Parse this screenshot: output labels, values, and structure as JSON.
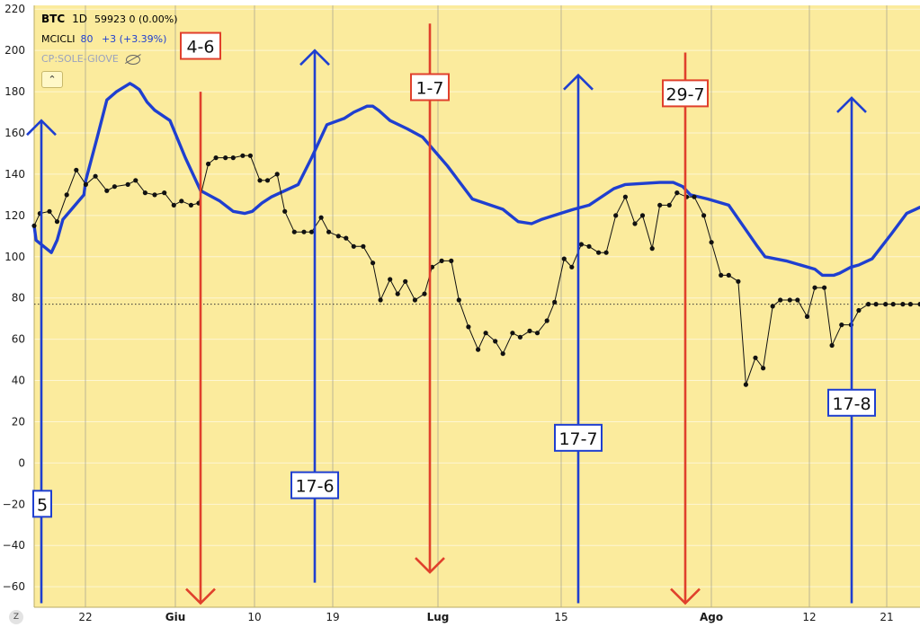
{
  "legend": {
    "symbol": "BTC",
    "timeframe": "1D",
    "price": "59923",
    "change": "0 (0.00%)",
    "indicator_name": "MCICLI",
    "indicator_value": "80",
    "indicator_change": "+3 (+3.39%)",
    "hidden_indicator": "CP:SOLE-GIOVE",
    "collapse_glyph": "⌃"
  },
  "scale_button": "Z",
  "colors": {
    "background": "#fbeb9d",
    "grid": "#e7d487",
    "blue": "#1f3fd0",
    "red": "#e0402c",
    "black_series": "#111111"
  },
  "chart_data": {
    "type": "line",
    "ylim": [
      -66,
      222
    ],
    "y_ticks": [
      220,
      200,
      180,
      160,
      140,
      120,
      100,
      80,
      60,
      40,
      20,
      0,
      -20,
      -40,
      -60
    ],
    "x_ticks": [
      {
        "label": "22",
        "bold": false
      },
      {
        "label": "Giu",
        "bold": true
      },
      {
        "label": "10",
        "bold": false
      },
      {
        "label": "19",
        "bold": false
      },
      {
        "label": "Lug",
        "bold": true
      },
      {
        "label": "15",
        "bold": false
      },
      {
        "label": "Ago",
        "bold": true
      },
      {
        "label": "12",
        "bold": false
      },
      {
        "label": "21",
        "bold": false
      }
    ],
    "reference_level": 77,
    "series": [
      {
        "name": "MCICLI",
        "color": "#1f3fd0",
        "style": "thick",
        "values": [
          [
            0,
            115
          ],
          [
            1,
            108
          ],
          [
            9,
            102
          ],
          [
            12,
            108
          ],
          [
            15,
            118
          ],
          [
            26,
            130
          ],
          [
            27,
            137
          ],
          [
            33,
            158
          ],
          [
            38,
            176
          ],
          [
            43,
            180
          ],
          [
            50,
            184
          ],
          [
            52,
            183
          ],
          [
            55,
            181
          ],
          [
            59,
            175
          ],
          [
            63,
            171
          ],
          [
            71,
            166
          ],
          [
            79,
            148
          ],
          [
            87,
            132
          ],
          [
            97,
            127
          ],
          [
            104,
            122
          ],
          [
            110,
            121
          ],
          [
            114,
            122
          ],
          [
            119,
            126
          ],
          [
            124,
            129
          ],
          [
            138,
            135
          ],
          [
            145,
            148
          ],
          [
            153,
            164
          ],
          [
            162,
            167
          ],
          [
            167,
            170
          ],
          [
            174,
            173
          ],
          [
            177,
            173
          ],
          [
            180,
            171
          ],
          [
            186,
            166
          ],
          [
            195,
            162
          ],
          [
            203,
            158
          ],
          [
            216,
            144
          ],
          [
            229,
            128
          ],
          [
            245,
            123
          ],
          [
            253,
            117
          ],
          [
            260,
            116
          ],
          [
            265,
            118
          ],
          [
            275,
            121
          ],
          [
            282,
            123
          ],
          [
            290,
            125
          ],
          [
            303,
            133
          ],
          [
            309,
            135
          ],
          [
            327,
            136
          ],
          [
            334,
            136
          ],
          [
            339,
            134
          ],
          [
            343,
            130
          ],
          [
            352,
            128
          ],
          [
            363,
            125
          ],
          [
            378,
            105
          ],
          [
            382,
            100
          ],
          [
            393,
            98
          ],
          [
            408,
            94
          ],
          [
            412,
            91
          ],
          [
            418,
            91
          ],
          [
            421,
            92
          ],
          [
            427,
            95
          ],
          [
            431,
            96
          ],
          [
            438,
            99
          ],
          [
            448,
            111
          ],
          [
            456,
            121
          ],
          [
            463,
            124
          ]
        ]
      },
      {
        "name": "BTC",
        "color": "#111111",
        "style": "markers",
        "values": [
          [
            0,
            115
          ],
          [
            3,
            121
          ],
          [
            8,
            122
          ],
          [
            12,
            117
          ],
          [
            17,
            130
          ],
          [
            22,
            142
          ],
          [
            27,
            135
          ],
          [
            32,
            139
          ],
          [
            38,
            132
          ],
          [
            42,
            134
          ],
          [
            49,
            135
          ],
          [
            53,
            137
          ],
          [
            58,
            131
          ],
          [
            63,
            130
          ],
          [
            68,
            131
          ],
          [
            73,
            125
          ],
          [
            77,
            127
          ],
          [
            82,
            125
          ],
          [
            86,
            126
          ],
          [
            91,
            145
          ],
          [
            95,
            148
          ],
          [
            100,
            148
          ],
          [
            104,
            148
          ],
          [
            109,
            149
          ],
          [
            113,
            149
          ],
          [
            118,
            137
          ],
          [
            122,
            137
          ],
          [
            127,
            140
          ],
          [
            131,
            122
          ],
          [
            136,
            112
          ],
          [
            141,
            112
          ],
          [
            145,
            112
          ],
          [
            150,
            119
          ],
          [
            154,
            112
          ],
          [
            159,
            110
          ],
          [
            163,
            109
          ],
          [
            167,
            105
          ],
          [
            172,
            105
          ],
          [
            177,
            97
          ],
          [
            181,
            79
          ],
          [
            186,
            89
          ],
          [
            190,
            82
          ],
          [
            194,
            88
          ],
          [
            199,
            79
          ],
          [
            204,
            82
          ],
          [
            208,
            95
          ],
          [
            213,
            98
          ],
          [
            218,
            98
          ],
          [
            222,
            79
          ],
          [
            227,
            66
          ],
          [
            232,
            55
          ],
          [
            236,
            63
          ],
          [
            241,
            59
          ],
          [
            245,
            53
          ],
          [
            250,
            63
          ],
          [
            254,
            61
          ],
          [
            259,
            64
          ],
          [
            263,
            63
          ],
          [
            268,
            69
          ],
          [
            272,
            78
          ],
          [
            277,
            99
          ],
          [
            281,
            95
          ],
          [
            286,
            106
          ],
          [
            290,
            105
          ],
          [
            295,
            102
          ],
          [
            299,
            102
          ],
          [
            304,
            120
          ],
          [
            309,
            129
          ],
          [
            314,
            116
          ],
          [
            318,
            120
          ],
          [
            323,
            104
          ],
          [
            327,
            125
          ],
          [
            332,
            125
          ],
          [
            336,
            131
          ],
          [
            341,
            129
          ],
          [
            345,
            129
          ],
          [
            350,
            120
          ],
          [
            354,
            107
          ],
          [
            359,
            91
          ],
          [
            363,
            91
          ],
          [
            368,
            88
          ],
          [
            372,
            38
          ],
          [
            377,
            51
          ],
          [
            381,
            46
          ],
          [
            386,
            76
          ],
          [
            390,
            79
          ],
          [
            395,
            79
          ],
          [
            399,
            79
          ],
          [
            404,
            71
          ],
          [
            408,
            85
          ],
          [
            413,
            85
          ],
          [
            417,
            57
          ],
          [
            422,
            67
          ],
          [
            427,
            67
          ],
          [
            431,
            74
          ],
          [
            436,
            77
          ],
          [
            440,
            77
          ],
          [
            445,
            77
          ],
          [
            449,
            77
          ],
          [
            454,
            77
          ],
          [
            458,
            77
          ],
          [
            463,
            77
          ]
        ]
      }
    ],
    "vertical_markers": [
      {
        "label": "5",
        "color": "#1f3fd0",
        "label_y": -20,
        "from": -68,
        "to": 166,
        "arrow": "up"
      },
      {
        "label": "4-6",
        "color": "#e0402c",
        "label_y": 202,
        "from": 180,
        "to": -68,
        "arrow": "down"
      },
      {
        "label": "17-6",
        "color": "#1f3fd0",
        "label_y": -11,
        "from": -58,
        "to": 200,
        "arrow": "up"
      },
      {
        "label": "1-7",
        "color": "#e0402c",
        "label_y": 182,
        "from": 213,
        "to": -53,
        "arrow": "down"
      },
      {
        "label": "17-7",
        "color": "#1f3fd0",
        "label_y": 12,
        "from": -68,
        "to": 188,
        "arrow": "up"
      },
      {
        "label": "29-7",
        "color": "#e0402c",
        "label_y": 179,
        "from": 199,
        "to": -68,
        "arrow": "down"
      },
      {
        "label": "17-8",
        "color": "#1f3fd0",
        "label_y": 29,
        "from": -68,
        "to": 177,
        "arrow": "up"
      }
    ]
  }
}
